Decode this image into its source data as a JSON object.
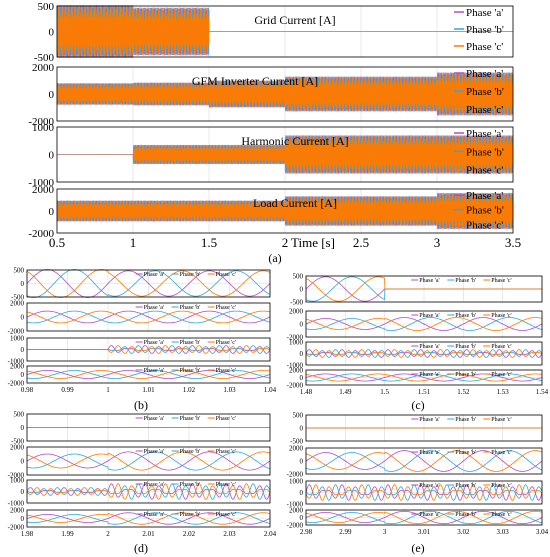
{
  "colors": {
    "phase_a": "#b04fc6",
    "phase_b": "#2fa7e0",
    "phase_c": "#ff7a00",
    "grid": "#d9d9d9",
    "axis": "#000000"
  },
  "figure_labels": {
    "a": "(a)",
    "b": "(b)",
    "c": "(c)",
    "d": "(d)",
    "e": "(e)"
  },
  "chart_data": [
    {
      "id": "a",
      "type": "line",
      "xlim": [
        0.5,
        3.5
      ],
      "xticks": [
        0.5,
        1,
        1.5,
        2,
        2.5,
        3,
        3.5
      ],
      "xtick_labels": [
        "0.5",
        "1",
        "1.5",
        "2",
        "2.5",
        "3",
        "3.5"
      ],
      "xlabel": "Time [s]",
      "grid": true,
      "legend": [
        "Phase 'a'",
        "Phase 'b'",
        "Phase 'c'"
      ],
      "legend_position": "right",
      "panels": [
        {
          "title": "Grid Current [A]",
          "ylim": [
            -500,
            500
          ],
          "yticks": [
            500,
            0,
            -500
          ],
          "segments": [
            {
              "t0": 0.5,
              "t1": 1.0,
              "amp": 520
            },
            {
              "t0": 1.0,
              "t1": 1.5,
              "amp": 470
            },
            {
              "t0": 1.5,
              "t1": 3.5,
              "amp": 0
            }
          ]
        },
        {
          "title": "GFM Inverter Current [A]",
          "ylim": [
            -2000,
            2000
          ],
          "yticks": [
            2000,
            0,
            -2000
          ],
          "segments": [
            {
              "t0": 0.5,
              "t1": 1.0,
              "amp": 800
            },
            {
              "t0": 1.0,
              "t1": 1.5,
              "amp": 850
            },
            {
              "t0": 1.5,
              "t1": 2.0,
              "amp": 1000
            },
            {
              "t0": 2.0,
              "t1": 3.0,
              "amp": 1300
            },
            {
              "t0": 3.0,
              "t1": 3.5,
              "amp": 1600
            }
          ]
        },
        {
          "title": "Harmonic Current [A]",
          "ylim": [
            -1000,
            1000
          ],
          "yticks": [
            1000,
            0,
            -1000
          ],
          "segments": [
            {
              "t0": 0.5,
              "t1": 1.0,
              "amp": 0
            },
            {
              "t0": 1.0,
              "t1": 2.0,
              "amp": 350
            },
            {
              "t0": 2.0,
              "t1": 3.5,
              "amp": 700
            }
          ]
        },
        {
          "title": "Load Current [A]",
          "ylim": [
            -2000,
            2000
          ],
          "yticks": [
            2000,
            0,
            -2000
          ],
          "segments": [
            {
              "t0": 0.5,
              "t1": 2.0,
              "amp": 950
            },
            {
              "t0": 2.0,
              "t1": 3.0,
              "amp": 1350
            },
            {
              "t0": 3.0,
              "t1": 3.5,
              "amp": 1650
            }
          ]
        }
      ]
    },
    {
      "id": "b",
      "type": "line",
      "xlim": [
        0.98,
        1.04
      ],
      "xticks": [
        0.98,
        0.99,
        1,
        1.01,
        1.02,
        1.03,
        1.04
      ],
      "xtick_labels": [
        "0.98",
        "0.99",
        "1",
        "1.01",
        "1.02",
        "1.03",
        "1.04"
      ],
      "legend": [
        "Phase 'a'",
        "Phase 'b'",
        "Phase 'c'"
      ],
      "panels": [
        {
          "ylim": [
            -500,
            500
          ],
          "yticks": [
            500,
            0,
            -500
          ],
          "ytick_labels": [
            "500",
            "0",
            "-500"
          ],
          "segments": [
            {
              "t0": 0.98,
              "t1": 1.0,
              "amp": 520
            },
            {
              "t0": 1.0,
              "t1": 1.04,
              "amp": 470
            }
          ]
        },
        {
          "ylim": [
            -2000,
            2000
          ],
          "yticks": [
            2000,
            0,
            -2000
          ],
          "ytick_labels": [
            "2000",
            "0",
            "-2000"
          ],
          "segments": [
            {
              "t0": 0.98,
              "t1": 1.04,
              "amp": 850
            }
          ]
        },
        {
          "ylim": [
            -1000,
            1000
          ],
          "yticks": [
            1000,
            0,
            -1000
          ],
          "ytick_labels": [
            "1000",
            "0",
            "-1000"
          ],
          "segments": [
            {
              "t0": 0.98,
              "t1": 1.0,
              "amp": 0
            },
            {
              "t0": 1.0,
              "t1": 1.04,
              "amp": 350
            }
          ]
        },
        {
          "ylim": [
            -2000,
            2000
          ],
          "yticks": [
            2000,
            0,
            -2000
          ],
          "ytick_labels": [
            "2000",
            "0",
            "-2000"
          ],
          "segments": [
            {
              "t0": 0.98,
              "t1": 1.04,
              "amp": 950
            }
          ]
        }
      ]
    },
    {
      "id": "c",
      "type": "line",
      "xlim": [
        1.48,
        1.54
      ],
      "xticks": [
        1.48,
        1.49,
        1.5,
        1.51,
        1.52,
        1.53,
        1.54
      ],
      "xtick_labels": [
        "1.48",
        "1.49",
        "1.5",
        "1.51",
        "1.52",
        "1.53",
        "1.54"
      ],
      "legend": [
        "Phase 'a'",
        "Phase 'b'",
        "Phase 'c'"
      ],
      "panels": [
        {
          "ylim": [
            -500,
            500
          ],
          "yticks": [
            500,
            0,
            -500
          ],
          "ytick_labels": [
            "500",
            "0",
            "-500"
          ],
          "segments": [
            {
              "t0": 1.48,
              "t1": 1.5,
              "amp": 470
            },
            {
              "t0": 1.5,
              "t1": 1.54,
              "amp": 0
            }
          ]
        },
        {
          "ylim": [
            -2000,
            2000
          ],
          "yticks": [
            2000,
            0,
            -2000
          ],
          "ytick_labels": [
            "2000",
            "0",
            "-2000"
          ],
          "segments": [
            {
              "t0": 1.48,
              "t1": 1.5,
              "amp": 850
            },
            {
              "t0": 1.5,
              "t1": 1.54,
              "amp": 1000
            }
          ]
        },
        {
          "ylim": [
            -1000,
            1000
          ],
          "yticks": [
            1000,
            0,
            -1000
          ],
          "ytick_labels": [
            "1000",
            "0",
            "-1000"
          ],
          "segments": [
            {
              "t0": 1.48,
              "t1": 1.54,
              "amp": 350
            }
          ]
        },
        {
          "ylim": [
            -2000,
            2000
          ],
          "yticks": [
            2000,
            0,
            -2000
          ],
          "ytick_labels": [
            "2000",
            "0",
            "-2000"
          ],
          "segments": [
            {
              "t0": 1.48,
              "t1": 1.54,
              "amp": 950
            }
          ]
        }
      ]
    },
    {
      "id": "d",
      "type": "line",
      "xlim": [
        1.98,
        2.04
      ],
      "xticks": [
        1.98,
        1.99,
        2,
        2.01,
        2.02,
        2.03,
        2.04
      ],
      "xtick_labels": [
        "1.98",
        "1.99",
        "2",
        "2.01",
        "2.02",
        "2.03",
        "2.04"
      ],
      "legend": [
        "Phase 'a'",
        "Phase 'b'",
        "Phase 'c'"
      ],
      "panels": [
        {
          "ylim": [
            -500,
            500
          ],
          "yticks": [
            500,
            0,
            -500
          ],
          "ytick_labels": [
            "500",
            "0",
            "-500"
          ],
          "segments": [
            {
              "t0": 1.98,
              "t1": 2.04,
              "amp": 0
            }
          ]
        },
        {
          "ylim": [
            -2000,
            2000
          ],
          "yticks": [
            2000,
            0,
            -2000
          ],
          "ytick_labels": [
            "2000",
            "0",
            "-2000"
          ],
          "segments": [
            {
              "t0": 1.98,
              "t1": 2.0,
              "amp": 1000
            },
            {
              "t0": 2.0,
              "t1": 2.04,
              "amp": 1300
            }
          ]
        },
        {
          "ylim": [
            -1000,
            1000
          ],
          "yticks": [
            1000,
            0,
            -1000
          ],
          "ytick_labels": [
            "1000",
            "0",
            "-1000"
          ],
          "segments": [
            {
              "t0": 1.98,
              "t1": 2.0,
              "amp": 350
            },
            {
              "t0": 2.0,
              "t1": 2.04,
              "amp": 700
            }
          ]
        },
        {
          "ylim": [
            -2000,
            2000
          ],
          "yticks": [
            2000,
            0,
            -2000
          ],
          "ytick_labels": [
            "2000",
            "0",
            "-2000"
          ],
          "segments": [
            {
              "t0": 1.98,
              "t1": 2.0,
              "amp": 950
            },
            {
              "t0": 2.0,
              "t1": 2.04,
              "amp": 1350
            }
          ]
        }
      ]
    },
    {
      "id": "e",
      "type": "line",
      "xlim": [
        2.98,
        3.04
      ],
      "xticks": [
        2.98,
        2.99,
        3,
        3.01,
        3.02,
        3.03,
        3.04
      ],
      "xtick_labels": [
        "2.98",
        "2.99",
        "3",
        "3.01",
        "3.02",
        "3.03",
        "3.04"
      ],
      "legend": [
        "Phase 'a'",
        "Phase 'b'",
        "Phase 'c'"
      ],
      "panels": [
        {
          "ylim": [
            -500,
            500
          ],
          "yticks": [
            500,
            0,
            -500
          ],
          "ytick_labels": [
            "500",
            "0",
            "-500"
          ],
          "segments": [
            {
              "t0": 2.98,
              "t1": 3.04,
              "amp": 0
            }
          ]
        },
        {
          "ylim": [
            -2000,
            2000
          ],
          "yticks": [
            2000,
            0,
            -2000
          ],
          "ytick_labels": [
            "2000",
            "0",
            "-2000"
          ],
          "segments": [
            {
              "t0": 2.98,
              "t1": 3.0,
              "amp": 1300
            },
            {
              "t0": 3.0,
              "t1": 3.04,
              "amp": 1600
            }
          ]
        },
        {
          "ylim": [
            -1000,
            1000
          ],
          "yticks": [
            1000,
            0,
            -1000
          ],
          "ytick_labels": [
            "1000",
            "0",
            "-1000"
          ],
          "segments": [
            {
              "t0": 2.98,
              "t1": 3.04,
              "amp": 700
            }
          ]
        },
        {
          "ylim": [
            -2000,
            2000
          ],
          "yticks": [
            2000,
            0,
            -2000
          ],
          "ytick_labels": [
            "2000",
            "0",
            "-2000"
          ],
          "segments": [
            {
              "t0": 2.98,
              "t1": 3.0,
              "amp": 1350
            },
            {
              "t0": 3.0,
              "t1": 3.04,
              "amp": 1650
            }
          ]
        }
      ]
    }
  ]
}
